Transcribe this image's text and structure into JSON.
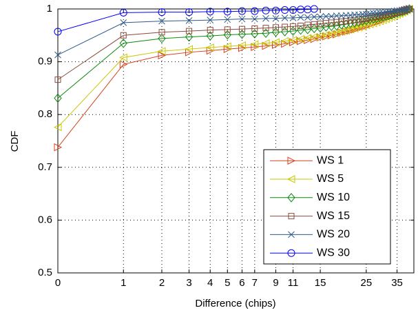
{
  "chart_data": {
    "type": "line",
    "xlabel": "Difference (chips)",
    "ylabel": "CDF",
    "xscale": "log1p",
    "x": [
      0,
      1,
      2,
      3,
      4,
      5,
      6,
      7,
      8,
      9,
      10,
      11,
      12,
      13,
      14,
      15,
      16,
      17,
      18,
      19,
      20,
      21,
      22,
      23,
      24,
      25,
      26,
      27,
      28,
      29,
      30,
      31,
      32,
      33,
      34,
      35,
      36,
      37,
      38,
      39,
      40
    ],
    "xlim": [
      0,
      42
    ],
    "xticks": [
      0,
      1,
      2,
      3,
      4,
      5,
      6,
      7,
      9,
      11,
      15,
      25,
      35
    ],
    "ylim": [
      0.5,
      1
    ],
    "yticks": [
      0.5,
      0.6,
      0.7,
      0.8,
      0.9,
      1
    ],
    "grid": true,
    "legend": "lower right",
    "series": [
      {
        "name": "WS 1",
        "color": "#d8401a",
        "marker": "triangle-right",
        "values": [
          0.738,
          0.895,
          0.912,
          0.918,
          0.921,
          0.924,
          0.926,
          0.928,
          0.93,
          0.932,
          0.934,
          0.937,
          0.939,
          0.941,
          0.943,
          0.946,
          0.948,
          0.95,
          0.952,
          0.955,
          0.957,
          0.959,
          0.961,
          0.964,
          0.966,
          0.968,
          0.97,
          0.973,
          0.975,
          0.977,
          0.979,
          0.982,
          0.984,
          0.986,
          0.988,
          0.991,
          0.993,
          0.995,
          0.997,
          0.999,
          1.0
        ]
      },
      {
        "name": "WS 5",
        "color": "#c8c800",
        "marker": "triangle-left",
        "values": [
          0.776,
          0.908,
          0.92,
          0.924,
          0.927,
          0.929,
          0.931,
          0.933,
          0.935,
          0.937,
          0.939,
          0.941,
          0.943,
          0.945,
          0.947,
          0.949,
          0.951,
          0.953,
          0.955,
          0.957,
          0.959,
          0.961,
          0.963,
          0.965,
          0.967,
          0.969,
          0.971,
          0.973,
          0.975,
          0.977,
          0.979,
          0.981,
          0.983,
          0.985,
          0.987,
          0.989,
          0.991,
          0.993,
          0.995,
          0.998,
          1.0
        ]
      },
      {
        "name": "WS 10",
        "color": "#0a8a0a",
        "marker": "diamond",
        "values": [
          0.831,
          0.935,
          0.944,
          0.947,
          0.949,
          0.951,
          0.952,
          0.953,
          0.954,
          0.956,
          0.957,
          0.958,
          0.96,
          0.961,
          0.963,
          0.964,
          0.966,
          0.967,
          0.968,
          0.97,
          0.971,
          0.973,
          0.974,
          0.975,
          0.977,
          0.978,
          0.98,
          0.981,
          0.982,
          0.984,
          0.985,
          0.987,
          0.988,
          0.989,
          0.991,
          0.992,
          0.994,
          0.995,
          0.997,
          0.998,
          1.0
        ]
      },
      {
        "name": "WS 15",
        "color": "#8b4a3a",
        "marker": "square",
        "values": [
          0.866,
          0.95,
          0.956,
          0.958,
          0.96,
          0.961,
          0.962,
          0.963,
          0.964,
          0.965,
          0.966,
          0.967,
          0.968,
          0.97,
          0.971,
          0.972,
          0.973,
          0.974,
          0.975,
          0.976,
          0.977,
          0.978,
          0.979,
          0.98,
          0.981,
          0.982,
          0.983,
          0.984,
          0.985,
          0.986,
          0.988,
          0.989,
          0.99,
          0.991,
          0.992,
          0.993,
          0.994,
          0.995,
          0.997,
          0.998,
          1.0
        ]
      },
      {
        "name": "WS 20",
        "color": "#2e5a8a",
        "marker": "x",
        "values": [
          0.913,
          0.974,
          0.977,
          0.978,
          0.979,
          0.98,
          0.981,
          0.981,
          0.982,
          0.982,
          0.983,
          0.983,
          0.984,
          0.984,
          0.985,
          0.985,
          0.986,
          0.986,
          0.987,
          0.987,
          0.988,
          0.988,
          0.989,
          0.989,
          0.99,
          0.99,
          0.991,
          0.992,
          0.992,
          0.993,
          0.993,
          0.994,
          0.995,
          0.995,
          0.996,
          0.997,
          0.997,
          0.998,
          0.999,
          0.999,
          1.0
        ]
      },
      {
        "name": "WS 30",
        "color": "#0000ff",
        "marker": "circle",
        "values": [
          0.957,
          0.993,
          0.994,
          0.994,
          0.995,
          0.995,
          0.996,
          0.996,
          0.997,
          0.997,
          0.998,
          0.998,
          0.999,
          0.999,
          1.0,
          null,
          null,
          null,
          null,
          null,
          null,
          null,
          null,
          null,
          null,
          null,
          null,
          null,
          null,
          null,
          null,
          null,
          null,
          null,
          null,
          null,
          null,
          null,
          null,
          null,
          null
        ]
      }
    ]
  }
}
